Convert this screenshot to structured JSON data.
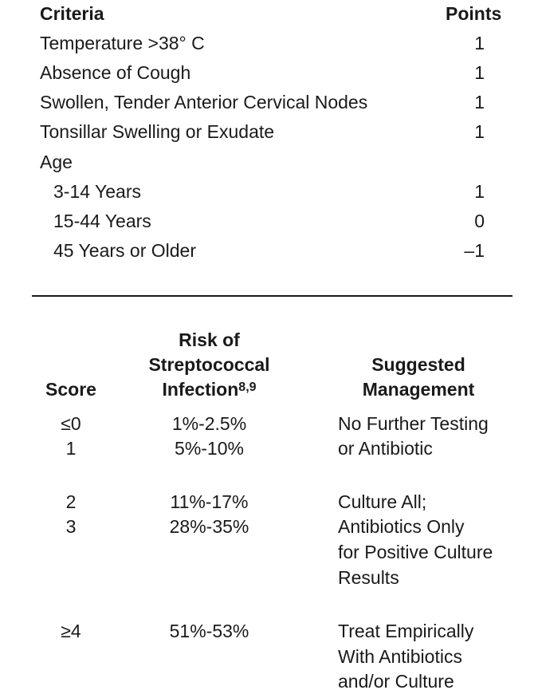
{
  "criteria_table": {
    "header_criteria": "Criteria",
    "header_points": "Points",
    "rows": [
      {
        "label": "Temperature >38° C",
        "points": "1"
      },
      {
        "label": "Absence of Cough",
        "points": "1"
      },
      {
        "label": "Swollen, Tender Anterior Cervical Nodes",
        "points": "1"
      },
      {
        "label": "Tonsillar Swelling or Exudate",
        "points": "1"
      },
      {
        "label": "Age",
        "points": ""
      },
      {
        "label": "3-14 Years",
        "points": "1"
      },
      {
        "label": "15-44 Years",
        "points": "0"
      },
      {
        "label": "45 Years or Older",
        "points": "–1"
      }
    ]
  },
  "risk_table": {
    "header_score": "Score",
    "header_risk_line1": "Risk of",
    "header_risk_line2": "Streptococcal",
    "header_risk_line3": "Infection",
    "header_risk_superscript": "8,9",
    "header_mgmt_line1": "Suggested",
    "header_mgmt_line2": "Management",
    "groups": [
      {
        "scores": [
          "≤0",
          "1"
        ],
        "risks": [
          "1%-2.5%",
          "5%-10%"
        ],
        "management": [
          "No Further Testing",
          "or Antibiotic"
        ]
      },
      {
        "scores": [
          "2",
          "3"
        ],
        "risks": [
          "11%-17%",
          "28%-35%"
        ],
        "management": [
          "Culture All;",
          "Antibiotics Only",
          "for Positive Culture",
          "Results"
        ]
      },
      {
        "scores": [
          "≥4"
        ],
        "risks": [
          "51%-53%"
        ],
        "management": [
          "Treat Empirically",
          "With Antibiotics",
          "and/or Culture"
        ]
      }
    ]
  }
}
